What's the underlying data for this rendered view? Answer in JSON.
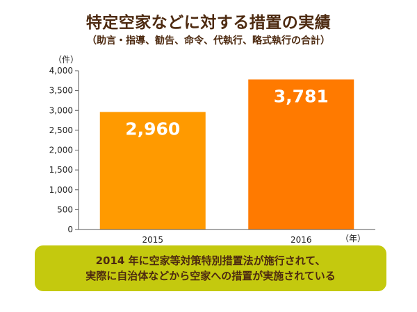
{
  "chart_data": {
    "type": "bar",
    "title": "特定空家などに対する措置の実績",
    "subtitle": "（助言・指導、勧告、命令、代執行、略式執行の合計）",
    "ylabel": "（件）",
    "xlabel": "（年）",
    "categories": [
      "2015",
      "2016"
    ],
    "values": [
      2960,
      3781
    ],
    "value_labels": [
      "2,960",
      "3,781"
    ],
    "ylim": [
      0,
      4000
    ],
    "yticks": [
      0,
      500,
      1000,
      1500,
      2000,
      2500,
      3000,
      3500,
      4000
    ],
    "ytick_labels": [
      "0",
      "500",
      "1,000",
      "1,500",
      "2,000",
      "2,500",
      "3,000",
      "3,500",
      "4,000"
    ],
    "bar_colors": [
      "#ff9a00",
      "#ff7a00"
    ],
    "grid": false,
    "legend": "none"
  },
  "callout": {
    "line1": "2014 年に空家等対策特別措置法が施行されて、",
    "line2": "実際に自治体などから空家への措置が実施されている"
  }
}
